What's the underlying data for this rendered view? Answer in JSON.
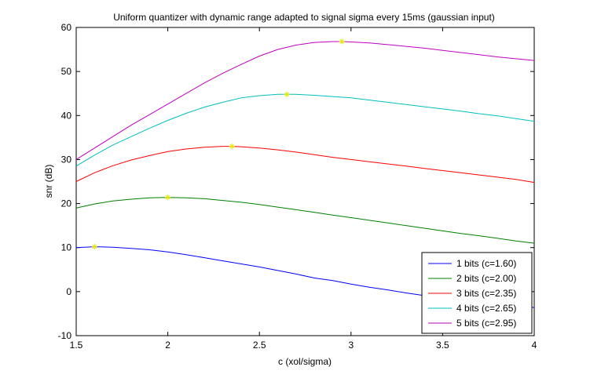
{
  "chart_data": {
    "type": "line",
    "title": "Uniform quantizer with dynamic range adapted to signal sigma every 15ms (gaussian input)",
    "xlabel": "c (xol/sigma)",
    "ylabel": "snr (dB)",
    "xlim": [
      1.5,
      4
    ],
    "ylim": [
      -10,
      60
    ],
    "xticks": [
      "1.5",
      "2",
      "2.5",
      "3",
      "3.5",
      "4"
    ],
    "yticks": [
      "-10",
      "0",
      "10",
      "20",
      "30",
      "40",
      "50",
      "60"
    ],
    "grid": false,
    "legend_position": "bottom-right",
    "marker_color": "#e6e600",
    "series": [
      {
        "name": "1 bits (c=1.60)",
        "color": "#0000ff",
        "x": [
          1.5,
          1.6,
          1.7,
          1.8,
          1.9,
          2.0,
          2.1,
          2.2,
          2.3,
          2.4,
          2.5,
          2.6,
          2.7,
          2.8,
          2.9,
          3.0,
          3.1,
          3.2,
          3.3,
          3.4,
          3.5,
          3.6,
          3.7,
          3.8,
          3.9,
          4.0
        ],
        "y": [
          10.0,
          10.2,
          10.1,
          9.8,
          9.5,
          9.0,
          8.4,
          7.7,
          7.0,
          6.3,
          5.6,
          4.8,
          4.0,
          3.1,
          2.5,
          1.7,
          1.0,
          0.4,
          -0.3,
          -0.9,
          -1.4,
          -1.9,
          -2.4,
          -2.8,
          -3.2,
          -3.6
        ],
        "optimum": {
          "x": 1.6,
          "y": 10.2
        }
      },
      {
        "name": "2 bits (c=2.00)",
        "color": "#008000",
        "x": [
          1.5,
          1.6,
          1.7,
          1.8,
          1.9,
          2.0,
          2.1,
          2.2,
          2.3,
          2.4,
          2.5,
          2.6,
          2.7,
          2.8,
          2.9,
          3.0,
          3.1,
          3.2,
          3.3,
          3.4,
          3.5,
          3.6,
          3.7,
          3.8,
          3.9,
          4.0
        ],
        "y": [
          19.0,
          19.9,
          20.6,
          21.0,
          21.3,
          21.4,
          21.3,
          21.1,
          20.7,
          20.3,
          19.8,
          19.2,
          18.6,
          18.0,
          17.4,
          16.8,
          16.2,
          15.6,
          15.0,
          14.4,
          13.8,
          13.2,
          12.7,
          12.1,
          11.5,
          11.0
        ],
        "optimum": {
          "x": 2.0,
          "y": 21.4
        }
      },
      {
        "name": "3 bits (c=2.35)",
        "color": "#ff0000",
        "x": [
          1.5,
          1.6,
          1.7,
          1.8,
          1.9,
          2.0,
          2.1,
          2.2,
          2.3,
          2.35,
          2.4,
          2.5,
          2.6,
          2.7,
          2.8,
          2.9,
          3.0,
          3.1,
          3.2,
          3.3,
          3.4,
          3.5,
          3.6,
          3.7,
          3.8,
          3.9,
          4.0
        ],
        "y": [
          25.0,
          27.0,
          28.6,
          29.9,
          30.9,
          31.8,
          32.4,
          32.8,
          33.0,
          33.0,
          32.9,
          32.6,
          32.2,
          31.7,
          31.1,
          30.5,
          30.0,
          29.5,
          29.0,
          28.5,
          28.0,
          27.5,
          27.0,
          26.5,
          26.0,
          25.5,
          24.8
        ],
        "optimum": {
          "x": 2.35,
          "y": 33.0
        }
      },
      {
        "name": "4 bits (c=2.65)",
        "color": "#00bfbf",
        "x": [
          1.5,
          1.6,
          1.7,
          1.8,
          1.9,
          2.0,
          2.1,
          2.2,
          2.3,
          2.4,
          2.5,
          2.6,
          2.65,
          2.7,
          2.8,
          2.9,
          3.0,
          3.1,
          3.2,
          3.3,
          3.4,
          3.5,
          3.6,
          3.7,
          3.8,
          3.9,
          4.0
        ],
        "y": [
          28.5,
          31.0,
          33.3,
          35.2,
          37.1,
          38.9,
          40.5,
          41.9,
          43.0,
          44.0,
          44.5,
          44.8,
          44.8,
          44.8,
          44.6,
          44.3,
          44.0,
          43.5,
          43.0,
          42.5,
          42.0,
          41.5,
          41.0,
          40.4,
          39.9,
          39.3,
          38.7
        ],
        "optimum": {
          "x": 2.65,
          "y": 44.8
        }
      },
      {
        "name": "5 bits (c=2.95)",
        "color": "#bf00bf",
        "x": [
          1.5,
          1.6,
          1.7,
          1.8,
          1.9,
          2.0,
          2.1,
          2.2,
          2.3,
          2.4,
          2.5,
          2.6,
          2.7,
          2.8,
          2.9,
          2.95,
          3.0,
          3.1,
          3.2,
          3.3,
          3.4,
          3.5,
          3.6,
          3.7,
          3.8,
          3.9,
          4.0
        ],
        "y": [
          30.0,
          32.6,
          35.2,
          37.8,
          40.2,
          42.6,
          45.0,
          47.4,
          49.6,
          51.6,
          53.5,
          55.0,
          56.0,
          56.6,
          56.8,
          56.8,
          56.7,
          56.5,
          56.1,
          55.7,
          55.3,
          54.8,
          54.3,
          53.8,
          53.3,
          52.9,
          52.5
        ],
        "optimum": {
          "x": 2.95,
          "y": 56.8
        }
      }
    ]
  }
}
